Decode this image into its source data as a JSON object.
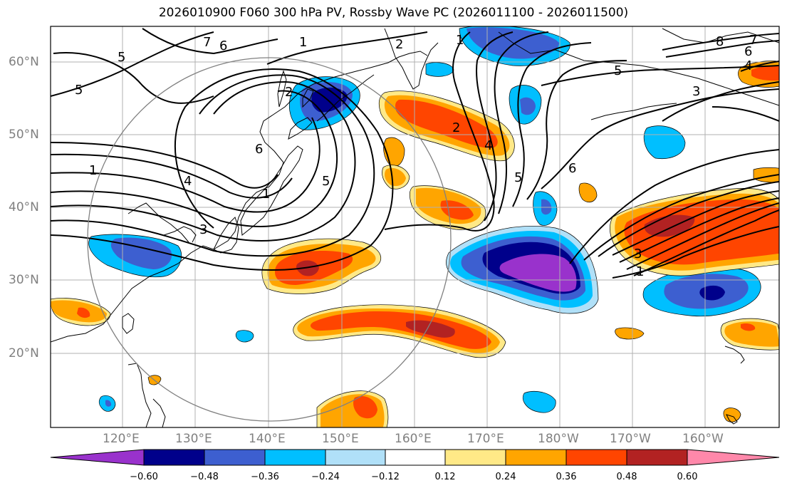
{
  "title": "2026010900 F060 300 hPa PV, Rossby Wave PC (2026011100 - 2026011500)",
  "lat_labels": [
    "60°N",
    "50°N",
    "40°N",
    "30°N",
    "20°N"
  ],
  "lon_labels": [
    "120°E",
    "130°E",
    "140°E",
    "150°E",
    "160°E",
    "170°E",
    "180°W",
    "170°W",
    "160°W"
  ],
  "colorbar": {
    "colors": [
      "#9932cc",
      "#00008b",
      "#3d5fd0",
      "#00bfff",
      "#b0e0f8",
      "#ffffff",
      "#ffe987",
      "#ffa500",
      "#ff4500",
      "#b22222",
      "#ff88aa"
    ],
    "ticks": [
      "−0.60",
      "−0.48",
      "−0.36",
      "−0.24",
      "−0.12",
      "0.12",
      "0.24",
      "0.36",
      "0.48",
      "0.60"
    ]
  },
  "contour_labels": [
    "1",
    "2",
    "3",
    "4",
    "5",
    "6",
    "7",
    "8"
  ]
}
